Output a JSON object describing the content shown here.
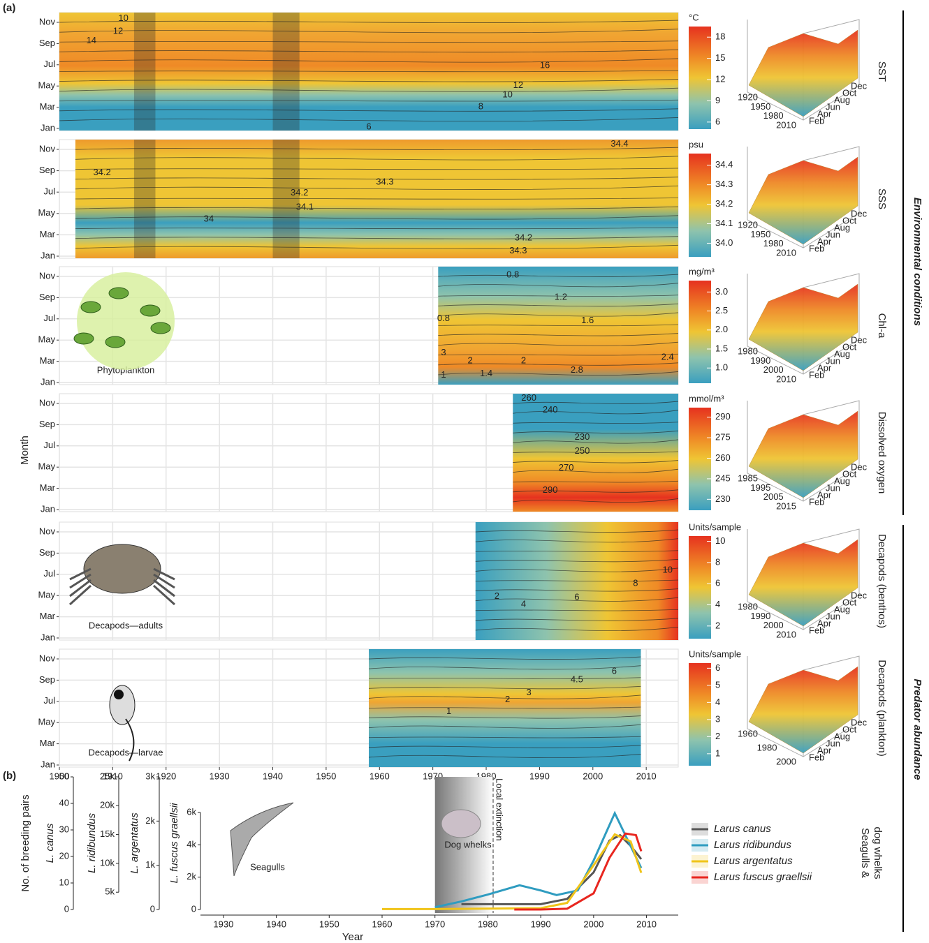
{
  "panel_labels": [
    "(a)",
    "(b)"
  ],
  "month_axis_label": "Month",
  "section_labels": [
    "Environmental conditions",
    "Predator abundance"
  ],
  "chart_data": [
    {
      "type": "contour",
      "side_label": "SST",
      "categories": [
        "Jan",
        "Mar",
        "May",
        "Jul",
        "Sep",
        "Nov"
      ],
      "xlim": [
        1900,
        2016
      ],
      "xticks": [
        1900,
        1910,
        1920,
        1930,
        1940,
        1950,
        1960,
        1970,
        1980,
        1990,
        2000,
        2010
      ],
      "data_xlim": [
        1900,
        2016
      ],
      "shaded_periods": [
        [
          1914,
          1918
        ],
        [
          1940,
          1945
        ]
      ],
      "colorbar": {
        "unit": "°C",
        "lim": [
          5,
          19.5
        ],
        "ticks": [
          6,
          9,
          12,
          15,
          18
        ]
      },
      "contour_labels": [
        "10",
        "12",
        "14",
        "16",
        "12",
        "10",
        "8",
        "6"
      ],
      "surface": {
        "year_ticks": [
          "1920",
          "1950",
          "1980",
          "2010"
        ],
        "month_ticks": [
          "Dec",
          "Oct",
          "Aug",
          "Jun",
          "Apr",
          "Feb"
        ]
      }
    },
    {
      "type": "contour",
      "side_label": "SSS",
      "categories": [
        "Jan",
        "Mar",
        "May",
        "Jul",
        "Sep",
        "Nov"
      ],
      "xlim": [
        1900,
        2016
      ],
      "xticks": [
        1900,
        1910,
        1920,
        1930,
        1940,
        1950,
        1960,
        1970,
        1980,
        1990,
        2000,
        2010
      ],
      "data_xlim": [
        1903,
        2016
      ],
      "shaded_periods": [
        [
          1914,
          1918
        ],
        [
          1940,
          1945
        ]
      ],
      "colorbar": {
        "unit": "psu",
        "lim": [
          33.93,
          34.46
        ],
        "ticks": [
          {
            "value": 34,
            "label": "34.0"
          },
          34.1,
          34.2,
          34.3,
          34.4
        ]
      },
      "contour_labels": [
        "34.2",
        "34.3",
        "34.2",
        "34.1",
        "34",
        "34.2",
        "34.3",
        "34.4"
      ],
      "surface": {
        "year_ticks": [
          "1920",
          "1950",
          "1980",
          "2010"
        ],
        "month_ticks": [
          "Dec",
          "Oct",
          "Aug",
          "Jun",
          "Apr",
          "Feb"
        ]
      }
    },
    {
      "type": "contour",
      "side_label": "Chl-a",
      "image_label": "Phytoplankton",
      "categories": [
        "Jan",
        "Mar",
        "May",
        "Jul",
        "Sep",
        "Nov"
      ],
      "xlim": [
        1900,
        2016
      ],
      "xticks": [
        1900,
        1910,
        1920,
        1930,
        1940,
        1950,
        1960,
        1970,
        1980,
        1990,
        2000,
        2010
      ],
      "data_xlim": [
        1971,
        2016
      ],
      "colorbar": {
        "unit": "mg/m³",
        "lim": [
          0.6,
          3.3
        ],
        "ticks": [
          {
            "value": 1,
            "label": "1.0"
          },
          1.5,
          {
            "value": 2,
            "label": "2.0"
          },
          2.5,
          {
            "value": 3,
            "label": "3.0"
          }
        ]
      },
      "contour_labels": [
        "0.8",
        "1.2",
        "0.8",
        "1.6",
        "3",
        "2",
        "2",
        "2.4",
        "2.8",
        "1",
        "1.4"
      ],
      "surface": {
        "year_ticks": [
          "1980",
          "1990",
          "2000",
          "2010"
        ],
        "month_ticks": [
          "Dec",
          "Oct",
          "Aug",
          "Jun",
          "Apr",
          "Feb"
        ]
      }
    },
    {
      "type": "contour",
      "side_label": "Dissolved oxygen",
      "categories": [
        "Jan",
        "Mar",
        "May",
        "Jul",
        "Sep",
        "Nov"
      ],
      "xlim": [
        1900,
        2016
      ],
      "xticks": [
        1900,
        1910,
        1920,
        1930,
        1940,
        1950,
        1960,
        1970,
        1980,
        1990,
        2000,
        2010
      ],
      "data_xlim": [
        1985,
        2016
      ],
      "colorbar": {
        "unit": "mmol/m³",
        "lim": [
          222,
          297
        ],
        "ticks": [
          230,
          245,
          260,
          275,
          290
        ]
      },
      "contour_labels": [
        "260",
        "240",
        "230",
        "250",
        "270",
        "290"
      ],
      "surface": {
        "year_ticks": [
          "1985",
          "1995",
          "2005",
          "2015"
        ],
        "month_ticks": [
          "Dec",
          "Oct",
          "Aug",
          "Jun",
          "Apr",
          "Feb"
        ]
      }
    },
    {
      "type": "contour",
      "side_label": "Decapods (benthos)",
      "image_label": "Decapods—adults",
      "categories": [
        "Jan",
        "Mar",
        "May",
        "Jul",
        "Sep",
        "Nov"
      ],
      "xlim": [
        1900,
        2016
      ],
      "xticks": [
        1900,
        1910,
        1920,
        1930,
        1940,
        1950,
        1960,
        1970,
        1980,
        1990,
        2000,
        2010
      ],
      "data_xlim": [
        1978,
        2016
      ],
      "colorbar": {
        "unit": "Units/sample",
        "lim": [
          0.8,
          10.5
        ],
        "ticks": [
          2,
          4,
          6,
          8,
          10
        ]
      },
      "contour_labels": [
        "2",
        "4",
        "6",
        "8",
        "10"
      ],
      "surface": {
        "year_ticks": [
          "1980",
          "1990",
          "2000",
          "2010"
        ],
        "month_ticks": [
          "Dec",
          "Oct",
          "Aug",
          "Jun",
          "Apr",
          "Feb"
        ]
      }
    },
    {
      "type": "contour",
      "side_label": "Decapods (plankton)",
      "image_label": "Decapods—larvae",
      "categories": [
        "Jan",
        "Mar",
        "May",
        "Jul",
        "Sep",
        "Nov"
      ],
      "xlim": [
        1900,
        2016
      ],
      "xticks": [
        1900,
        1910,
        1920,
        1930,
        1940,
        1950,
        1960,
        1970,
        1980,
        1990,
        2000,
        2010
      ],
      "data_xlim": [
        1958,
        2009
      ],
      "colorbar": {
        "unit": "Units/sample",
        "lim": [
          0.3,
          6.3
        ],
        "ticks": [
          1,
          2,
          3,
          4,
          5,
          6
        ]
      },
      "contour_labels": [
        "1",
        "2",
        "3",
        "4.5",
        "6"
      ],
      "surface": {
        "year_ticks": [
          "1960",
          "1980",
          "2000"
        ],
        "month_ticks": [
          "Dec",
          "Oct",
          "Aug",
          "Jun",
          "Apr",
          "Feb"
        ]
      }
    },
    {
      "type": "line",
      "x_label": "Year",
      "y_label": "No. of breeding pairs",
      "xlim": [
        1925,
        2016
      ],
      "xticks": [
        1930,
        1940,
        1950,
        1960,
        1970,
        1980,
        1990,
        2000,
        2010
      ],
      "y_axes": [
        {
          "label": "L. canus",
          "ylim": [
            0,
            50
          ],
          "ticks": [
            0,
            10,
            20,
            30,
            40,
            50
          ]
        },
        {
          "label": "L. ridibundus",
          "ylim": [
            2000,
            25000
          ],
          "ticks": [
            {
              "value": 5000,
              "label": "5k"
            },
            {
              "value": 10000,
              "label": "10k"
            },
            {
              "value": 15000,
              "label": "15k"
            },
            {
              "value": 20000,
              "label": "20k"
            },
            {
              "value": 25000,
              "label": "25k"
            }
          ]
        },
        {
          "label": "L. argentatus",
          "ylim": [
            0,
            3000
          ],
          "ticks": [
            0,
            {
              "value": 1000,
              "label": "1k"
            },
            {
              "value": 2000,
              "label": "2k"
            },
            {
              "value": 3000,
              "label": "3k"
            }
          ]
        },
        {
          "label": "L. fuscus graellsii",
          "ylim": [
            0,
            8200
          ],
          "ticks": [
            0,
            {
              "value": 2000,
              "label": "2k"
            },
            {
              "value": 4000,
              "label": "4k"
            },
            {
              "value": 6000,
              "label": "6k"
            }
          ]
        }
      ],
      "series": [
        {
          "name": "Larus canus",
          "color": "#555555",
          "axis": 0,
          "x": [
            1975,
            1980,
            1985,
            1990,
            1995,
            2000,
            2003,
            2005,
            2007,
            2009
          ],
          "values": [
            2,
            2,
            2,
            2,
            4,
            14,
            26,
            28,
            24,
            19
          ]
        },
        {
          "name": "Larus ridibundus",
          "color": "#2f9cc0",
          "axis": 1,
          "x": [
            1970,
            1975,
            1980,
            1986,
            1990,
            1993,
            1997,
            2000,
            2004,
            2007,
            2009
          ],
          "values": [
            2400,
            3400,
            4600,
            6200,
            5300,
            4500,
            5300,
            10500,
            18700,
            13000,
            9200
          ]
        },
        {
          "name": "Larus argentatus",
          "color": "#f0c419",
          "axis": 2,
          "x": [
            1960,
            1970,
            1980,
            1990,
            1995,
            2000,
            2004,
            2007,
            2009
          ],
          "values": [
            10,
            10,
            20,
            30,
            150,
            1000,
            1700,
            1540,
            830
          ]
        },
        {
          "name": "Larus fuscus graellsii",
          "color": "#e8261f",
          "axis": 3,
          "x": [
            1985,
            1990,
            1995,
            2000,
            2003,
            2006,
            2008,
            2009
          ],
          "values": [
            0,
            0,
            50,
            1000,
            3200,
            4700,
            4600,
            3600
          ]
        }
      ],
      "annotations": [
        "Seagulls",
        "Dog whelks",
        "Local extinction"
      ],
      "dog_whelk_period": [
        1970,
        1981
      ],
      "side_label": [
        "Seagulls &",
        "dog whelks"
      ]
    }
  ]
}
